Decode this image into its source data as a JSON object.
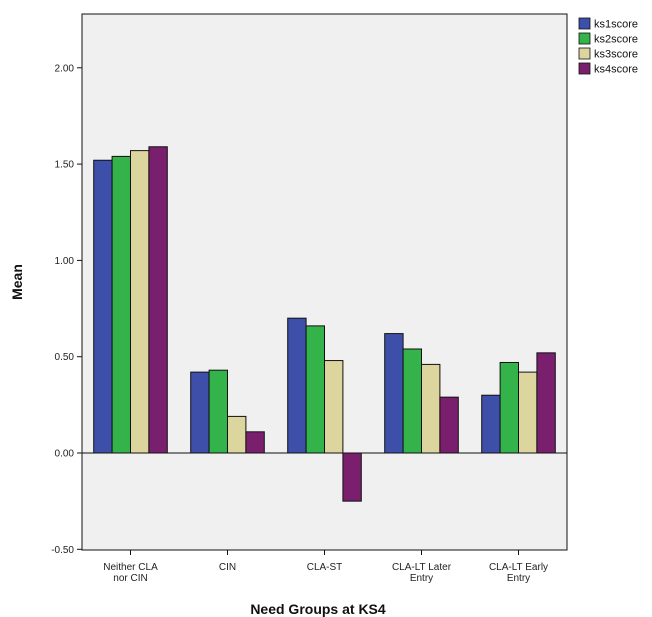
{
  "chart_data": {
    "type": "bar",
    "xlabel": "Need Groups at KS4",
    "ylabel": "Mean",
    "categories": [
      [
        "Neither CLA",
        "nor CIN"
      ],
      [
        "CIN"
      ],
      [
        "CLA-ST"
      ],
      [
        "CLA-LT Later",
        "Entry"
      ],
      [
        "CLA-LT Early",
        "Entry"
      ]
    ],
    "ylim": [
      -0.5,
      2.25
    ],
    "yticks": [
      "-0.50",
      "0.00",
      "0.50",
      "1.00",
      "1.50",
      "2.00"
    ],
    "ytick_values": [
      -0.5,
      0,
      0.5,
      1,
      1.5,
      2
    ],
    "grid": false,
    "legend_position": "top-right, outside plot",
    "series": [
      {
        "name": "ks1score",
        "color": "#3d4fa8",
        "values": [
          1.52,
          0.42,
          0.7,
          0.62,
          0.3
        ]
      },
      {
        "name": "ks2score",
        "color": "#33b34a",
        "values": [
          1.54,
          0.43,
          0.66,
          0.54,
          0.47
        ]
      },
      {
        "name": "ks3score",
        "color": "#dcd59e",
        "values": [
          1.57,
          0.19,
          0.48,
          0.46,
          0.42
        ]
      },
      {
        "name": "ks4score",
        "color": "#7a1f6e",
        "values": [
          1.59,
          0.11,
          -0.25,
          0.29,
          0.52
        ]
      }
    ]
  }
}
